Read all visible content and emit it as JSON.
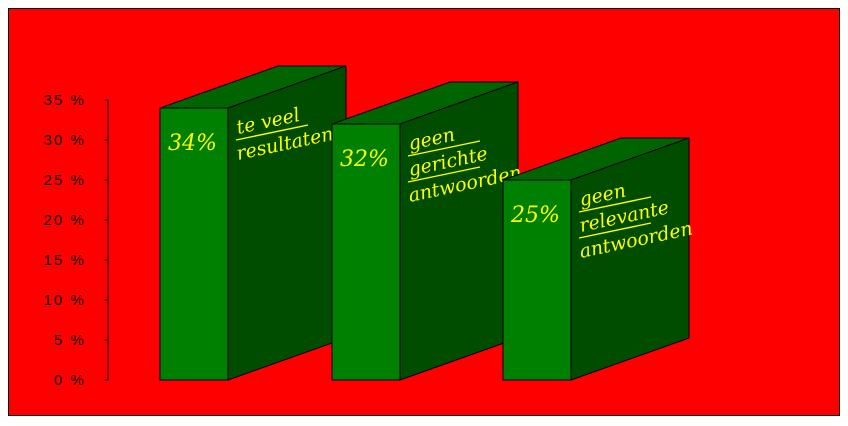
{
  "chart_data": {
    "type": "bar",
    "title": "",
    "xlabel": "",
    "ylabel": "",
    "ylim": [
      0,
      35
    ],
    "yticks": [
      "0 %",
      "5 %",
      "10 %",
      "15 %",
      "20 %",
      "25 %",
      "30 %",
      "35 %"
    ],
    "categories": [
      "te veel resultaten",
      "geen gerichte antwoorden",
      "geen relevante antwoorden"
    ],
    "values": [
      34,
      32,
      25
    ],
    "value_labels": [
      "34%",
      "32%",
      "25%"
    ],
    "annotations": [
      [
        "te veel",
        "resultaten"
      ],
      [
        "geen",
        "gerichte",
        "antwoorden"
      ],
      [
        "geen",
        "relevante",
        "antwoorden"
      ]
    ],
    "grid": false,
    "legend": "none",
    "style": "3d"
  },
  "colors": {
    "background": "#ff0000",
    "bar_front": "#008000",
    "bar_side": "#004d00",
    "bar_top": "#006400",
    "handwriting": "#ffff00"
  }
}
